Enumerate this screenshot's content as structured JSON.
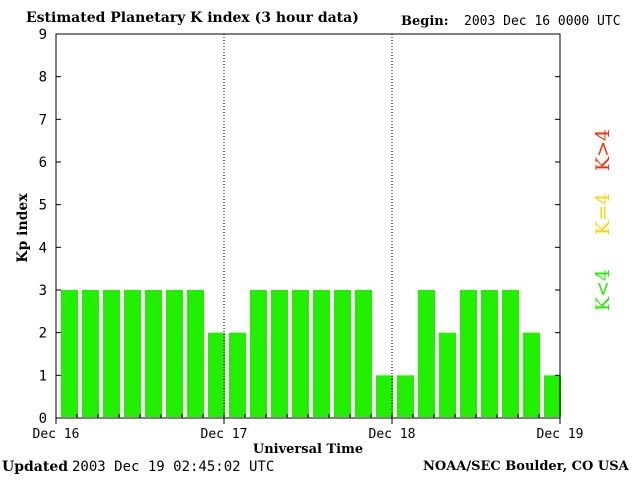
{
  "header": {
    "title": "Estimated Planetary K index (3 hour data)",
    "begin_label": "Begin:",
    "begin_value": "2003 Dec 16 0000 UTC"
  },
  "footer": {
    "updated_label": "Updated",
    "updated_value": "2003 Dec 19 02:45:02 UTC",
    "org": "NOAA/SEC Boulder, CO USA"
  },
  "legend": [
    {
      "label": "K>4",
      "color": "#ff2a00"
    },
    {
      "label": "K=4",
      "color": "#ffd400"
    },
    {
      "label": "K<4",
      "color": "#22ee00"
    }
  ],
  "chart_data": {
    "type": "bar",
    "title": "Estimated Planetary K index (3 hour data)",
    "xlabel": "Universal Time",
    "ylabel": "Kp index",
    "ylim": [
      0,
      9
    ],
    "yticks": [
      0,
      1,
      2,
      3,
      4,
      5,
      6,
      7,
      8,
      9
    ],
    "day_labels": [
      "Dec 16",
      "Dec 17",
      "Dec 18",
      "Dec 19"
    ],
    "bar_color": "#22ee00",
    "series": [
      {
        "values": [
          3,
          3,
          3,
          3,
          3,
          3,
          3,
          2,
          2,
          3,
          3,
          3,
          3,
          3,
          3,
          1,
          1,
          3,
          2,
          3,
          3,
          3,
          2,
          1
        ]
      }
    ]
  }
}
